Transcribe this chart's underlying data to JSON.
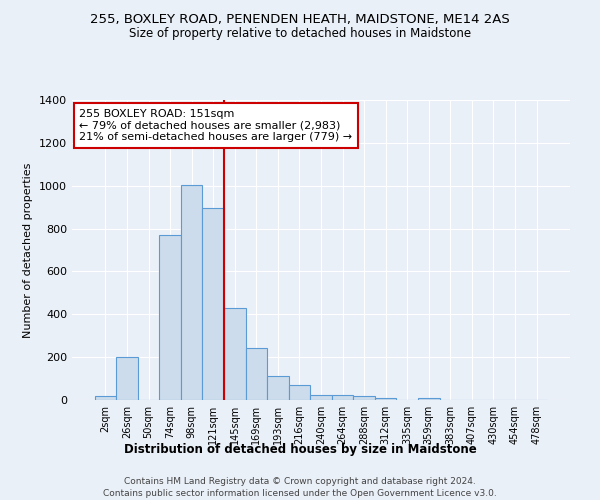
{
  "title": "255, BOXLEY ROAD, PENENDEN HEATH, MAIDSTONE, ME14 2AS",
  "subtitle": "Size of property relative to detached houses in Maidstone",
  "xlabel": "Distribution of detached houses by size in Maidstone",
  "ylabel": "Number of detached properties",
  "footer_line1": "Contains HM Land Registry data © Crown copyright and database right 2024.",
  "footer_line2": "Contains public sector information licensed under the Open Government Licence v3.0.",
  "categories": [
    "2sqm",
    "26sqm",
    "50sqm",
    "74sqm",
    "98sqm",
    "121sqm",
    "145sqm",
    "169sqm",
    "193sqm",
    "216sqm",
    "240sqm",
    "264sqm",
    "288sqm",
    "312sqm",
    "335sqm",
    "359sqm",
    "383sqm",
    "407sqm",
    "430sqm",
    "454sqm",
    "478sqm"
  ],
  "values": [
    20,
    200,
    0,
    770,
    1005,
    895,
    430,
    243,
    113,
    68,
    22,
    25,
    20,
    10,
    0,
    10,
    0,
    0,
    0,
    0,
    0
  ],
  "bar_color": "#ccdcec",
  "bar_edge_color": "#5b9bd5",
  "ylim": [
    0,
    1400
  ],
  "yticks": [
    0,
    200,
    400,
    600,
    800,
    1000,
    1200,
    1400
  ],
  "vline_index": 6.0,
  "annotation_text_line1": "255 BOXLEY ROAD: 151sqm",
  "annotation_text_line2": "← 79% of detached houses are smaller (2,983)",
  "annotation_text_line3": "21% of semi-detached houses are larger (779) →",
  "annotation_box_color": "white",
  "annotation_box_edge_color": "#cc0000",
  "vline_color": "#cc0000",
  "bg_color": "#eaf0f8",
  "grid_color": "white",
  "title_fontsize": 9.5,
  "subtitle_fontsize": 8.5
}
